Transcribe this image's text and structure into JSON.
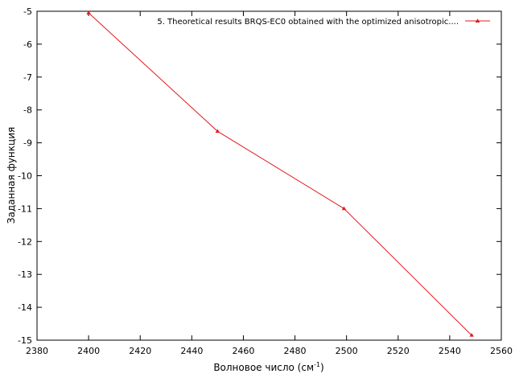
{
  "chart_data": {
    "type": "line",
    "title": "",
    "xlabel": "Волновое число (см",
    "xlabel_superscript": "-1",
    "xlabel_suffix": ")",
    "ylabel": "Заданная функция",
    "xlim": [
      2380,
      2560
    ],
    "ylim": [
      -15,
      -5
    ],
    "x_ticks": [
      2380,
      2400,
      2420,
      2440,
      2460,
      2480,
      2500,
      2520,
      2540,
      2560
    ],
    "y_ticks": [
      -5,
      -6,
      -7,
      -8,
      -9,
      -10,
      -11,
      -12,
      -13,
      -14,
      -15
    ],
    "grid": false,
    "legend_position": "top-right",
    "series": [
      {
        "name": "5. Theoretical results BRQS-EC0 obtained with the optimized anisotropic....",
        "color": "#e41a1c",
        "marker": "triangle",
        "x": [
          2400,
          2450,
          2499,
          2548.5
        ],
        "y": [
          -5.05,
          -8.65,
          -11.0,
          -14.85
        ]
      }
    ]
  }
}
